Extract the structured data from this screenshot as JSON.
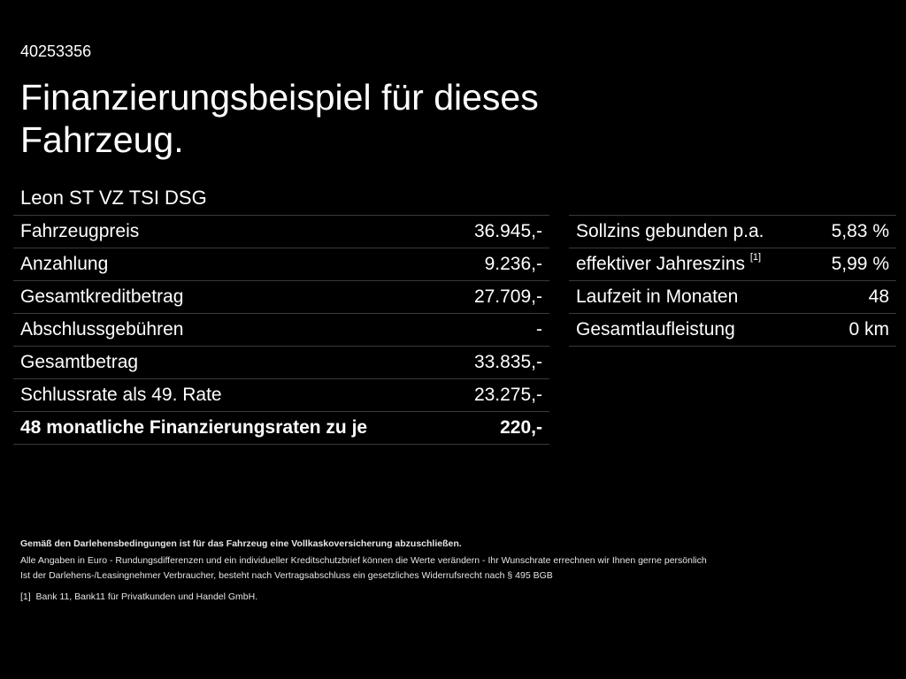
{
  "id_number": "40253356",
  "title": "Finanzierungsbeispiel für dieses Fahrzeug.",
  "model": "Leon ST VZ TSI DSG",
  "left_table": [
    {
      "label": "Fahrzeugpreis",
      "value": "36.945,-"
    },
    {
      "label": "Anzahlung",
      "value": "9.236,-"
    },
    {
      "label": "Gesamtkreditbetrag",
      "value": "27.709,-"
    },
    {
      "label": "Abschlussgebühren",
      "value": "-"
    },
    {
      "label": "Gesamtbetrag",
      "value": "33.835,-"
    },
    {
      "label": "Schlussrate als 49. Rate",
      "value": "23.275,-"
    },
    {
      "label": "48 monatliche Finanzierungsraten zu je",
      "value": "220,-"
    }
  ],
  "right_table": [
    {
      "label": "Sollzins gebunden p.a.",
      "sup": "",
      "value": "5,83 %"
    },
    {
      "label": "effektiver Jahreszins",
      "sup": "[1]",
      "value": "5,99 %"
    },
    {
      "label": "Laufzeit in Monaten",
      "sup": "",
      "value": "48"
    },
    {
      "label": "Gesamtlaufleistung",
      "sup": "",
      "value": "0 km"
    }
  ],
  "notes": {
    "insurance": "Gemäß den Darlehensbedingungen ist für das Fahrzeug eine Vollkaskoversicherung abzuschließen.",
    "line1": "Alle Angaben in Euro - Rundungsdifferenzen und ein individueller Kreditschutzbrief können die Werte verändern - Ihr Wunschrate errechnen wir Ihnen gerne persönlich",
    "line2": "Ist der Darlehens-/Leasingnehmer Verbraucher, besteht nach Vertragsabschluss ein gesetzliches Widerrufsrecht nach § 495 BGB",
    "footnote_mark": "[1]",
    "footnote": "Bank 11, Bank11 für Privatkunden und Handel GmbH."
  }
}
